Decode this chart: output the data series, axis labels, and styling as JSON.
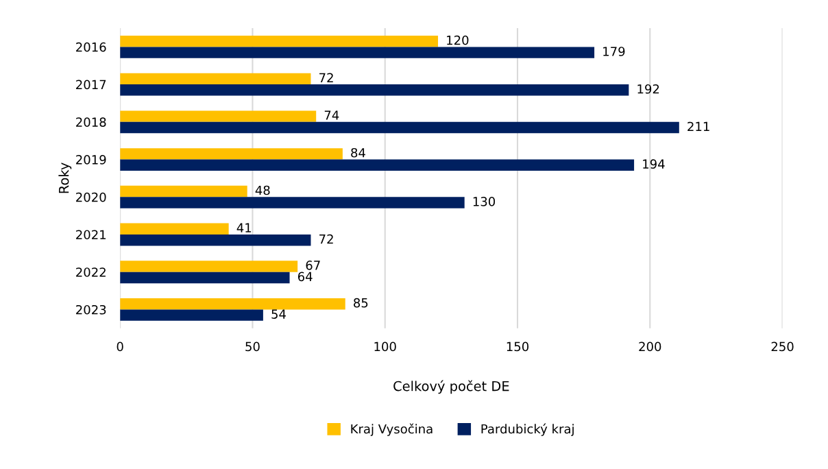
{
  "chart_data": {
    "type": "bar",
    "orientation": "horizontal",
    "xlabel": "Celkový počet DE",
    "ylabel": "Roky",
    "categories": [
      "2016",
      "2017",
      "2018",
      "2019",
      "2020",
      "2021",
      "2022",
      "2023"
    ],
    "series": [
      {
        "name": "Kraj Vysočina",
        "color": "#ffc000",
        "values": [
          120,
          72,
          74,
          84,
          48,
          41,
          67,
          85
        ]
      },
      {
        "name": "Pardubický kraj",
        "color": "#002060",
        "values": [
          179,
          192,
          211,
          194,
          130,
          72,
          64,
          54
        ]
      }
    ],
    "xlim": [
      0,
      250
    ],
    "xticks": [
      0,
      50,
      100,
      150,
      200,
      250
    ],
    "grid": "x",
    "legend": "bottom",
    "data_labels": true
  }
}
